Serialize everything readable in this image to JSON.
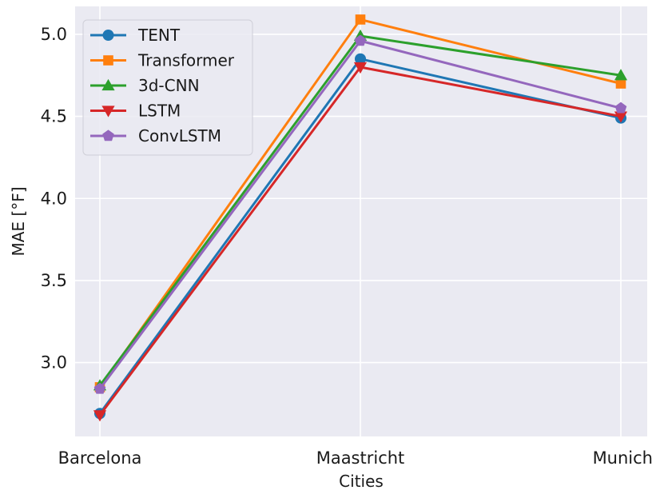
{
  "chart_data": {
    "type": "line",
    "title": "",
    "xlabel": "Cities",
    "ylabel": "MAE [°F]",
    "categories": [
      "Barcelona",
      "Maastricht",
      "Munich"
    ],
    "ylim": [
      2.55,
      5.17
    ],
    "yticks": [
      3.0,
      3.5,
      4.0,
      4.5,
      5.0
    ],
    "ytick_labels": [
      "3.0",
      "3.5",
      "4.0",
      "4.5",
      "5.0"
    ],
    "grid": true,
    "legend_position": "top-left",
    "background": "#eaeaf2",
    "series": [
      {
        "name": "TENT",
        "values": [
          2.69,
          4.85,
          4.49
        ],
        "color": "#1f77b4",
        "marker": "circle"
      },
      {
        "name": "Transformer",
        "values": [
          2.85,
          5.09,
          4.7
        ],
        "color": "#ff7f0e",
        "marker": "square"
      },
      {
        "name": "3d-CNN",
        "values": [
          2.86,
          4.99,
          4.75
        ],
        "color": "#2ca02c",
        "marker": "triangle-up"
      },
      {
        "name": "LSTM",
        "values": [
          2.68,
          4.8,
          4.5
        ],
        "color": "#d62728",
        "marker": "triangle-down"
      },
      {
        "name": "ConvLSTM",
        "values": [
          2.84,
          4.96,
          4.55
        ],
        "color": "#9467bd",
        "marker": "pentagon"
      }
    ]
  }
}
